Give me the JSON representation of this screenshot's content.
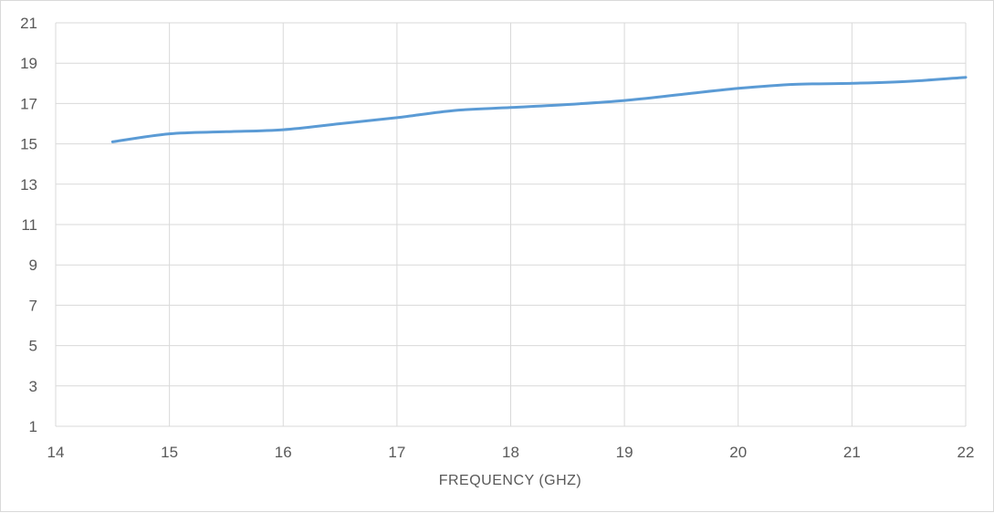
{
  "chart_data": {
    "type": "line",
    "title": "",
    "xlabel": "FREQUENCY (GHZ)",
    "ylabel": "",
    "xlim": [
      14,
      22
    ],
    "ylim": [
      1,
      21
    ],
    "x_ticks": [
      14,
      15,
      16,
      17,
      18,
      19,
      20,
      21,
      22
    ],
    "y_ticks": [
      1,
      3,
      5,
      7,
      9,
      11,
      13,
      15,
      17,
      19,
      21
    ],
    "grid": true,
    "legend": "none",
    "series": [
      {
        "color": "#5b9bd5",
        "x": [
          14.5,
          15.0,
          15.5,
          16.0,
          16.5,
          17.0,
          17.5,
          18.0,
          18.5,
          19.0,
          19.5,
          20.0,
          20.5,
          21.0,
          21.5,
          22.0
        ],
        "y": [
          15.1,
          15.5,
          15.6,
          15.7,
          16.0,
          16.3,
          16.65,
          16.8,
          16.95,
          17.15,
          17.45,
          17.75,
          17.95,
          18.0,
          18.1,
          18.3
        ]
      }
    ]
  }
}
